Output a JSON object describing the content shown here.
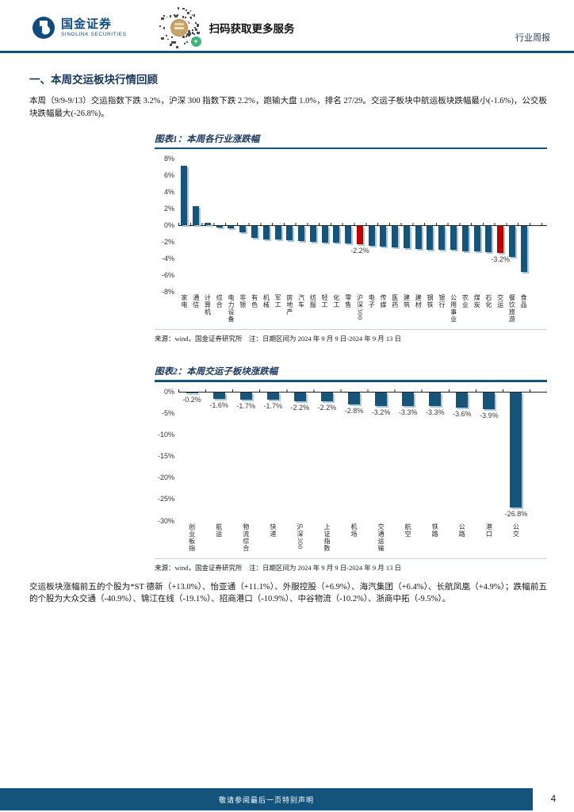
{
  "header": {
    "logo_name": "国金证券",
    "logo_sub": "SINOLINK SECURITIES",
    "qr_caption": "扫码获取更多服务",
    "report_type": "行业周报"
  },
  "section": {
    "title": "一、本周交运板块行情回顾",
    "paragraph1": "本周（9/9-9/13）交运指数下跌 3.2%，沪深 300 指数下跌 2.2%，跑输大盘 1.0%，排名 27/29。交运子板块中航运板块跌幅最小(-1.6%)，公交板块跌幅最大(-26.8%)。",
    "paragraph2": "交运板块涨幅前五的个股为*ST 德新（+13.0%）、怡亚通（+11.1%）、外服控股（+6.9%）、海汽集团（+6.4%）、长航凤凰（+4.9%）；跌幅前五的个股为大众交通（-40.9%）、锦江在线（-19.1%）、招商港口（-10.9%）、中谷物流（-10.2%）、浙商中拓（-9.5%）。"
  },
  "figures": [
    {
      "title": "图表1：本周各行业涨跌幅",
      "source": "来源：wind，国金证券研究所　注：日期区间为 2024 年 9 月 9 日-2024 年 9 月 13 日"
    },
    {
      "title": "图表2：本周交运子板块涨跌幅",
      "source": "来源：wind，国金证券研究所　注：日期区间为 2024 年 9 月 9 日-2024 年 9 月 13 日"
    }
  ],
  "chart_data": [
    {
      "type": "bar",
      "title": "本周各行业涨跌幅",
      "categories": [
        "家电",
        "通信",
        "计算机",
        "综合",
        "电力设备",
        "非银",
        "有色",
        "机械",
        "军工",
        "房地产",
        "汽车",
        "纺服",
        "轻工",
        "化工",
        "零售",
        "沪深300",
        "电子",
        "传媒",
        "医药",
        "建筑",
        "建材",
        "钢铁",
        "银行",
        "公用事业",
        "农业",
        "煤炭",
        "石化",
        "交运",
        "餐饮旅游",
        "食品"
      ],
      "values": [
        7.1,
        2.3,
        0.3,
        -0.2,
        -0.3,
        -0.8,
        -1.4,
        -1.6,
        -1.6,
        -1.7,
        -1.8,
        -1.9,
        -2.0,
        -2.0,
        -2.1,
        -2.2,
        -2.4,
        -2.5,
        -2.6,
        -2.7,
        -2.8,
        -2.9,
        -2.9,
        -2.9,
        -3.0,
        -3.0,
        -3.1,
        -3.2,
        -3.7,
        -5.5
      ],
      "unit": "%",
      "ylim": [
        -8,
        8
      ],
      "ytick_step": 2,
      "grid": false,
      "legend": false,
      "highlight_indices": [
        15,
        27
      ],
      "labeled_indices": [
        15,
        27
      ],
      "shown_labels": [
        "-2.2%",
        "-3.2%"
      ]
    },
    {
      "type": "bar",
      "title": "本周交运子板块涨跌幅",
      "categories": [
        "创业板指",
        "航运",
        "物流综合",
        "快递",
        "沪深300",
        "上证指数",
        "机场",
        "交通运输",
        "航空",
        "铁路",
        "公路",
        "港口",
        "公交"
      ],
      "values": [
        -0.2,
        -1.6,
        -1.7,
        -1.7,
        -2.2,
        -2.2,
        -2.8,
        -3.2,
        -3.3,
        -3.3,
        -3.6,
        -3.9,
        -26.8
      ],
      "unit": "%",
      "ylim": [
        -30,
        0
      ],
      "ytick_step": 5,
      "grid": false,
      "legend": false,
      "highlight_indices": [],
      "show_all_labels": true
    }
  ],
  "footer": {
    "disclaimer": "敬请参阅最后一页特别声明",
    "page_number": "4"
  },
  "colors": {
    "bar": "#17547A",
    "bar_shadow": "#A9C7DC",
    "highlight": "#C00000",
    "heading": "#17365D",
    "rule": "#14537C",
    "footer_bar": "#14537C",
    "logo": "#114C7F",
    "qr_tan": "#C8A36A",
    "qr_green": "#3EB575",
    "axis": "#222222"
  }
}
